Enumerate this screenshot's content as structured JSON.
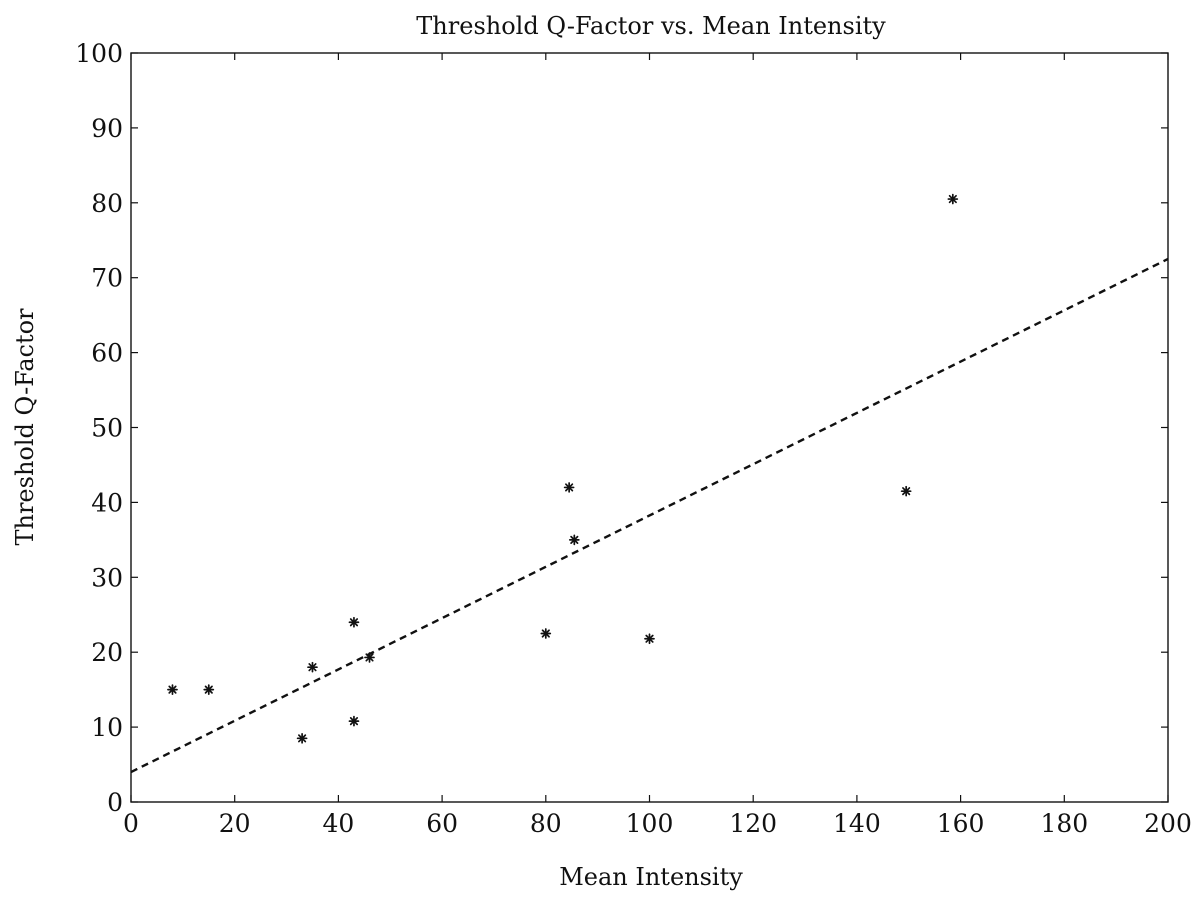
{
  "chart_data": {
    "type": "scatter",
    "title": "Threshold Q-Factor vs. Mean Intensity",
    "xlabel": "Mean Intensity",
    "ylabel": "Threshold Q-Factor",
    "xlim": [
      0,
      200
    ],
    "ylim": [
      0,
      100
    ],
    "x_ticks": [
      0,
      20,
      40,
      60,
      80,
      100,
      120,
      140,
      160,
      180,
      200
    ],
    "y_ticks": [
      0,
      10,
      20,
      30,
      40,
      50,
      60,
      70,
      80,
      90,
      100
    ],
    "grid": false,
    "marker": "asterisk",
    "points": [
      {
        "x": 8,
        "y": 15
      },
      {
        "x": 15,
        "y": 15
      },
      {
        "x": 33,
        "y": 8.5
      },
      {
        "x": 35,
        "y": 18
      },
      {
        "x": 43,
        "y": 10.8
      },
      {
        "x": 43,
        "y": 24
      },
      {
        "x": 46,
        "y": 19.3
      },
      {
        "x": 80,
        "y": 22.5
      },
      {
        "x": 84.5,
        "y": 42
      },
      {
        "x": 85.5,
        "y": 35
      },
      {
        "x": 100,
        "y": 21.8
      },
      {
        "x": 149.5,
        "y": 41.5
      },
      {
        "x": 158.5,
        "y": 80.5
      }
    ],
    "fit_line": {
      "style": "dashed",
      "x": [
        0,
        200
      ],
      "y": [
        4,
        72.5
      ]
    }
  }
}
